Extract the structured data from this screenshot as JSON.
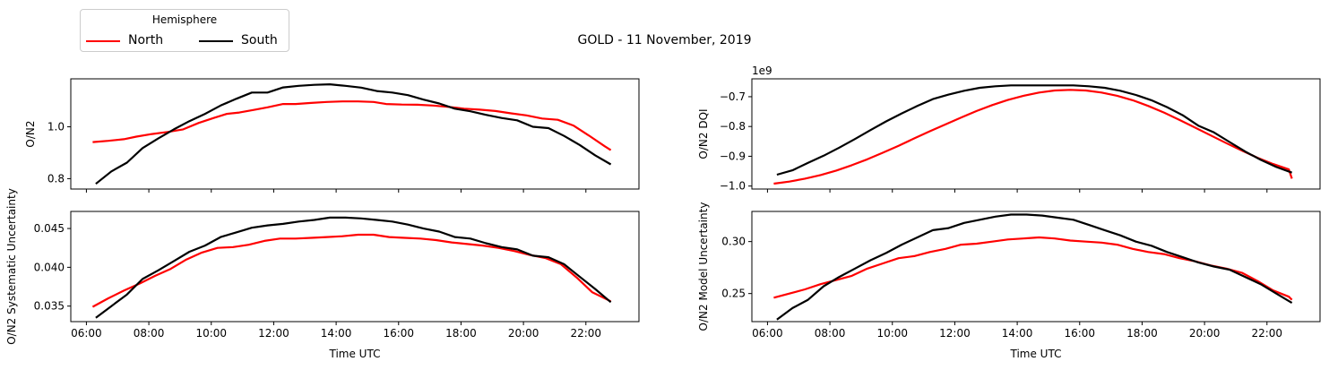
{
  "figure_title": "GOLD - 11 November, 2019",
  "legend": {
    "title": "Hemisphere",
    "entries": [
      {
        "name": "North",
        "color": "#ff0000"
      },
      {
        "name": "South",
        "color": "#000000"
      }
    ]
  },
  "chart_data": [
    {
      "type": "line",
      "ylabel": "O/N2",
      "xlabel": "",
      "xlim": [
        5.5,
        23.7
      ],
      "ylim": [
        0.76,
        1.185
      ],
      "xticks": [
        6,
        8,
        10,
        12,
        14,
        16,
        18,
        20,
        22
      ],
      "xtick_labels": [],
      "yticks": [
        0.8,
        1.0
      ],
      "ytick_labels": [
        "0.8",
        "1.0"
      ],
      "grid": false,
      "series": [
        {
          "name": "North",
          "color": "#ff0000",
          "x": [
            6.2,
            6.7,
            7.2,
            7.6,
            8.1,
            8.6,
            9.1,
            9.6,
            10.1,
            10.5,
            10.9,
            11.4,
            11.8,
            12.3,
            12.7,
            13.2,
            13.7,
            14.2,
            14.7,
            15.2,
            15.6,
            16.1,
            16.6,
            17.1,
            17.6,
            18.1,
            18.6,
            19.1,
            19.6,
            20.1,
            20.6,
            21.1,
            21.6,
            22.1,
            22.6,
            22.8
          ],
          "y": [
            0.941,
            0.946,
            0.952,
            0.962,
            0.972,
            0.98,
            0.99,
            1.015,
            1.035,
            1.05,
            1.055,
            1.066,
            1.075,
            1.088,
            1.088,
            1.092,
            1.096,
            1.098,
            1.098,
            1.096,
            1.088,
            1.086,
            1.085,
            1.082,
            1.077,
            1.07,
            1.066,
            1.061,
            1.052,
            1.044,
            1.032,
            1.027,
            1.005,
            0.966,
            0.925,
            0.91
          ]
        },
        {
          "name": "South",
          "color": "#000000",
          "x": [
            6.3,
            6.8,
            7.3,
            7.8,
            8.3,
            8.8,
            9.3,
            9.8,
            10.3,
            10.8,
            11.3,
            11.8,
            12.3,
            12.8,
            13.3,
            13.8,
            14.3,
            14.8,
            15.3,
            15.8,
            16.3,
            16.8,
            17.3,
            17.8,
            18.3,
            18.8,
            19.3,
            19.8,
            20.3,
            20.8,
            21.3,
            21.8,
            22.3,
            22.8
          ],
          "y": [
            0.78,
            0.828,
            0.862,
            0.918,
            0.955,
            0.99,
            1.022,
            1.05,
            1.082,
            1.108,
            1.132,
            1.132,
            1.152,
            1.158,
            1.162,
            1.164,
            1.158,
            1.151,
            1.138,
            1.132,
            1.122,
            1.105,
            1.09,
            1.07,
            1.06,
            1.046,
            1.034,
            1.025,
            1.0,
            0.995,
            0.965,
            0.93,
            0.89,
            0.855
          ]
        }
      ]
    },
    {
      "type": "line",
      "ylabel": "O/N2 DQI",
      "xlabel": "",
      "offset_text": "1e9",
      "xlim": [
        5.5,
        23.7
      ],
      "ylim": [
        -1.01,
        -0.64
      ],
      "xticks": [
        6,
        8,
        10,
        12,
        14,
        16,
        18,
        20,
        22
      ],
      "xtick_labels": [],
      "yticks": [
        -1.0,
        -0.9,
        -0.8,
        -0.7
      ],
      "ytick_labels": [
        "−1.0",
        "−0.9",
        "−0.8",
        "−0.7"
      ],
      "grid": false,
      "series": [
        {
          "name": "North",
          "color": "#ff0000",
          "x": [
            6.2,
            6.7,
            7.2,
            7.7,
            8.2,
            8.7,
            9.2,
            9.7,
            10.2,
            10.7,
            11.2,
            11.7,
            12.2,
            12.7,
            13.2,
            13.7,
            14.2,
            14.7,
            15.2,
            15.7,
            16.2,
            16.7,
            17.2,
            17.7,
            18.2,
            18.7,
            19.2,
            19.7,
            20.2,
            20.7,
            21.2,
            21.7,
            22.2,
            22.7,
            22.8
          ],
          "y": [
            -0.992,
            -0.985,
            -0.975,
            -0.963,
            -0.948,
            -0.93,
            -0.91,
            -0.888,
            -0.865,
            -0.84,
            -0.816,
            -0.793,
            -0.77,
            -0.748,
            -0.728,
            -0.711,
            -0.697,
            -0.686,
            -0.679,
            -0.677,
            -0.679,
            -0.686,
            -0.697,
            -0.712,
            -0.731,
            -0.753,
            -0.778,
            -0.804,
            -0.83,
            -0.856,
            -0.881,
            -0.905,
            -0.926,
            -0.944,
            -0.975
          ]
        },
        {
          "name": "South",
          "color": "#000000",
          "x": [
            6.3,
            6.8,
            7.3,
            7.8,
            8.3,
            8.8,
            9.3,
            9.8,
            10.3,
            10.8,
            11.3,
            11.8,
            12.3,
            12.8,
            13.3,
            13.8,
            14.3,
            14.8,
            15.3,
            15.8,
            16.3,
            16.8,
            17.3,
            17.8,
            18.3,
            18.8,
            19.3,
            19.8,
            20.3,
            20.8,
            21.3,
            21.8,
            22.3,
            22.8
          ],
          "y": [
            -0.962,
            -0.947,
            -0.922,
            -0.898,
            -0.871,
            -0.842,
            -0.812,
            -0.783,
            -0.756,
            -0.731,
            -0.708,
            -0.693,
            -0.68,
            -0.67,
            -0.665,
            -0.662,
            -0.662,
            -0.662,
            -0.662,
            -0.662,
            -0.665,
            -0.67,
            -0.68,
            -0.694,
            -0.712,
            -0.735,
            -0.762,
            -0.797,
            -0.82,
            -0.852,
            -0.884,
            -0.912,
            -0.936,
            -0.955
          ]
        }
      ]
    },
    {
      "type": "line",
      "ylabel": "O/N2 Systematic Uncertainty",
      "xlabel": "Time UTC",
      "xlim": [
        5.5,
        23.7
      ],
      "ylim": [
        0.033,
        0.0472
      ],
      "xticks": [
        6,
        8,
        10,
        12,
        14,
        16,
        18,
        20,
        22
      ],
      "xtick_labels": [
        "06:00",
        "08:00",
        "10:00",
        "12:00",
        "14:00",
        "16:00",
        "18:00",
        "20:00",
        "22:00"
      ],
      "yticks": [
        0.035,
        0.04,
        0.045
      ],
      "ytick_labels": [
        "0.035",
        "0.040",
        "0.045"
      ],
      "grid": false,
      "series": [
        {
          "name": "North",
          "color": "#ff0000",
          "x": [
            6.2,
            6.7,
            7.2,
            7.7,
            8.2,
            8.7,
            9.2,
            9.7,
            10.2,
            10.7,
            11.2,
            11.7,
            12.2,
            12.7,
            13.2,
            13.7,
            14.2,
            14.7,
            15.2,
            15.7,
            16.2,
            16.7,
            17.2,
            17.7,
            18.2,
            18.7,
            19.2,
            19.7,
            20.2,
            20.7,
            21.2,
            21.7,
            22.2,
            22.7,
            22.8
          ],
          "y": [
            0.0349,
            0.036,
            0.037,
            0.0379,
            0.0389,
            0.0398,
            0.041,
            0.0419,
            0.0425,
            0.0426,
            0.0429,
            0.0434,
            0.0437,
            0.0437,
            0.0438,
            0.0439,
            0.044,
            0.0442,
            0.0442,
            0.0439,
            0.0438,
            0.0437,
            0.0435,
            0.0432,
            0.043,
            0.0428,
            0.0425,
            0.0421,
            0.0416,
            0.0412,
            0.0404,
            0.0387,
            0.0368,
            0.0358,
            0.0356
          ]
        },
        {
          "name": "South",
          "color": "#000000",
          "x": [
            6.3,
            6.8,
            7.3,
            7.8,
            8.3,
            8.8,
            9.3,
            9.8,
            10.3,
            10.8,
            11.3,
            11.8,
            12.3,
            12.8,
            13.3,
            13.8,
            14.3,
            14.8,
            15.3,
            15.8,
            16.3,
            16.8,
            17.3,
            17.8,
            18.3,
            18.8,
            19.3,
            19.8,
            20.3,
            20.8,
            21.3,
            21.8,
            22.3,
            22.8
          ],
          "y": [
            0.0335,
            0.035,
            0.0365,
            0.0385,
            0.0396,
            0.0408,
            0.042,
            0.0428,
            0.0439,
            0.0445,
            0.0451,
            0.0454,
            0.0456,
            0.0459,
            0.0461,
            0.0464,
            0.0464,
            0.0463,
            0.0461,
            0.0459,
            0.0455,
            0.045,
            0.0446,
            0.0439,
            0.0437,
            0.0431,
            0.0426,
            0.0423,
            0.0415,
            0.0413,
            0.0404,
            0.0388,
            0.0372,
            0.0355
          ]
        }
      ]
    },
    {
      "type": "line",
      "ylabel": "O/N2 Model Uncertainty",
      "xlabel": "Time UTC",
      "xlim": [
        5.5,
        23.7
      ],
      "ylim": [
        0.223,
        0.329
      ],
      "xticks": [
        6,
        8,
        10,
        12,
        14,
        16,
        18,
        20,
        22
      ],
      "xtick_labels": [
        "06:00",
        "08:00",
        "10:00",
        "12:00",
        "14:00",
        "16:00",
        "18:00",
        "20:00",
        "22:00"
      ],
      "yticks": [
        0.25,
        0.3
      ],
      "ytick_labels": [
        "0.25",
        "0.30"
      ],
      "grid": false,
      "series": [
        {
          "name": "North",
          "color": "#ff0000",
          "x": [
            6.2,
            6.7,
            7.2,
            7.7,
            8.2,
            8.7,
            9.2,
            9.7,
            10.2,
            10.7,
            11.2,
            11.7,
            12.2,
            12.7,
            13.2,
            13.7,
            14.2,
            14.7,
            15.2,
            15.7,
            16.2,
            16.7,
            17.2,
            17.7,
            18.2,
            18.7,
            19.2,
            19.7,
            20.2,
            20.7,
            21.2,
            21.7,
            22.2,
            22.7,
            22.8
          ],
          "y": [
            0.246,
            0.25,
            0.254,
            0.259,
            0.263,
            0.267,
            0.274,
            0.279,
            0.284,
            0.286,
            0.29,
            0.293,
            0.297,
            0.298,
            0.3,
            0.302,
            0.303,
            0.304,
            0.303,
            0.301,
            0.3,
            0.299,
            0.297,
            0.293,
            0.29,
            0.288,
            0.284,
            0.281,
            0.277,
            0.274,
            0.27,
            0.262,
            0.253,
            0.247,
            0.244
          ]
        },
        {
          "name": "South",
          "color": "#000000",
          "x": [
            6.3,
            6.8,
            7.3,
            7.8,
            8.3,
            8.8,
            9.3,
            9.8,
            10.3,
            10.8,
            11.3,
            11.8,
            12.3,
            12.8,
            13.3,
            13.8,
            14.3,
            14.8,
            15.3,
            15.8,
            16.3,
            16.8,
            17.3,
            17.8,
            18.3,
            18.8,
            19.3,
            19.8,
            20.3,
            20.8,
            21.3,
            21.8,
            22.3,
            22.8
          ],
          "y": [
            0.225,
            0.236,
            0.244,
            0.257,
            0.266,
            0.274,
            0.282,
            0.289,
            0.297,
            0.304,
            0.311,
            0.313,
            0.318,
            0.321,
            0.324,
            0.326,
            0.326,
            0.325,
            0.323,
            0.321,
            0.316,
            0.311,
            0.306,
            0.3,
            0.296,
            0.29,
            0.285,
            0.28,
            0.276,
            0.273,
            0.266,
            0.259,
            0.25,
            0.241
          ]
        }
      ]
    }
  ]
}
